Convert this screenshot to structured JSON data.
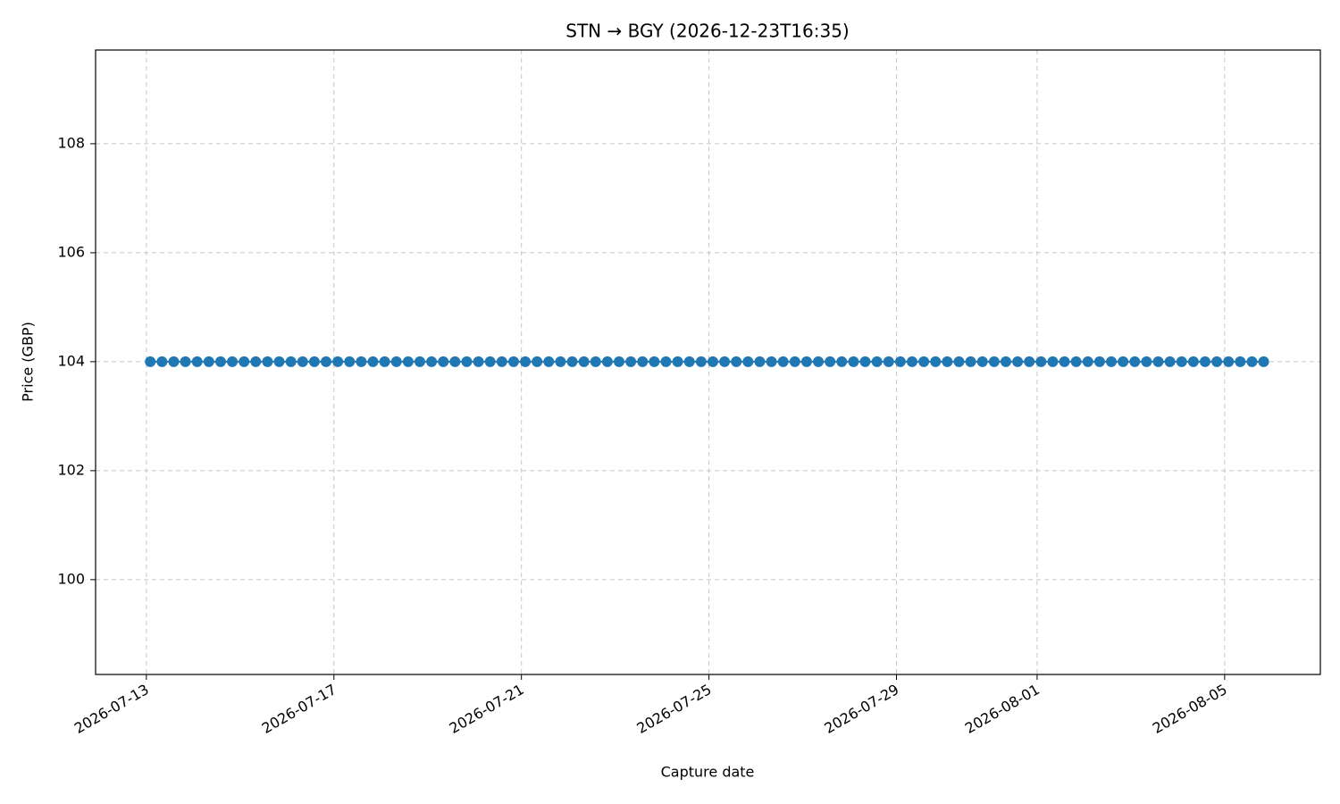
{
  "chart_data": {
    "type": "line",
    "title": "STN → BGY (2026-12-23T16:35)",
    "x_label": "Capture date",
    "y_label": "Price (GBP)",
    "x": [
      "2026-07-13T02:00",
      "2026-07-13T08:00",
      "2026-07-13T14:00",
      "2026-07-13T20:00",
      "2026-07-14T02:00",
      "2026-07-14T08:00",
      "2026-07-14T14:00",
      "2026-07-14T20:00",
      "2026-07-15T02:00",
      "2026-07-15T08:00",
      "2026-07-15T14:00",
      "2026-07-15T20:00",
      "2026-07-16T02:00",
      "2026-07-16T08:00",
      "2026-07-16T14:00",
      "2026-07-16T20:00",
      "2026-07-17T02:00",
      "2026-07-17T08:00",
      "2026-07-17T14:00",
      "2026-07-17T20:00",
      "2026-07-18T02:00",
      "2026-07-18T08:00",
      "2026-07-18T14:00",
      "2026-07-18T20:00",
      "2026-07-19T02:00",
      "2026-07-19T08:00",
      "2026-07-19T14:00",
      "2026-07-19T20:00",
      "2026-07-20T02:00",
      "2026-07-20T08:00",
      "2026-07-20T14:00",
      "2026-07-20T20:00",
      "2026-07-21T02:00",
      "2026-07-21T08:00",
      "2026-07-21T14:00",
      "2026-07-21T20:00",
      "2026-07-22T02:00",
      "2026-07-22T08:00",
      "2026-07-22T14:00",
      "2026-07-22T20:00",
      "2026-07-23T02:00",
      "2026-07-23T08:00",
      "2026-07-23T14:00",
      "2026-07-23T20:00",
      "2026-07-24T02:00",
      "2026-07-24T08:00",
      "2026-07-24T14:00",
      "2026-07-24T20:00",
      "2026-07-25T02:00",
      "2026-07-25T08:00",
      "2026-07-25T14:00",
      "2026-07-25T20:00",
      "2026-07-26T02:00",
      "2026-07-26T08:00",
      "2026-07-26T14:00",
      "2026-07-26T20:00",
      "2026-07-27T02:00",
      "2026-07-27T08:00",
      "2026-07-27T14:00",
      "2026-07-27T20:00",
      "2026-07-28T02:00",
      "2026-07-28T08:00",
      "2026-07-28T14:00",
      "2026-07-28T20:00",
      "2026-07-29T02:00",
      "2026-07-29T08:00",
      "2026-07-29T14:00",
      "2026-07-29T20:00",
      "2026-07-30T02:00",
      "2026-07-30T08:00",
      "2026-07-30T14:00",
      "2026-07-30T20:00",
      "2026-07-31T02:00",
      "2026-07-31T08:00",
      "2026-07-31T14:00",
      "2026-07-31T20:00",
      "2026-08-01T02:00",
      "2026-08-01T08:00",
      "2026-08-01T14:00",
      "2026-08-01T20:00",
      "2026-08-02T02:00",
      "2026-08-02T08:00",
      "2026-08-02T14:00",
      "2026-08-02T20:00",
      "2026-08-03T02:00",
      "2026-08-03T08:00",
      "2026-08-03T14:00",
      "2026-08-03T20:00",
      "2026-08-04T02:00",
      "2026-08-04T08:00",
      "2026-08-04T14:00",
      "2026-08-04T20:00",
      "2026-08-05T02:00",
      "2026-08-05T08:00",
      "2026-08-05T14:00",
      "2026-08-05T20:00"
    ],
    "values": [
      104,
      104,
      104,
      104,
      104,
      104,
      104,
      104,
      104,
      104,
      104,
      104,
      104,
      104,
      104,
      104,
      104,
      104,
      104,
      104,
      104,
      104,
      104,
      104,
      104,
      104,
      104,
      104,
      104,
      104,
      104,
      104,
      104,
      104,
      104,
      104,
      104,
      104,
      104,
      104,
      104,
      104,
      104,
      104,
      104,
      104,
      104,
      104,
      104,
      104,
      104,
      104,
      104,
      104,
      104,
      104,
      104,
      104,
      104,
      104,
      104,
      104,
      104,
      104,
      104,
      104,
      104,
      104,
      104,
      104,
      104,
      104,
      104,
      104,
      104,
      104,
      104,
      104,
      104,
      104,
      104,
      104,
      104,
      104,
      104,
      104,
      104,
      104,
      104,
      104,
      104,
      104,
      104,
      104,
      104,
      104
    ],
    "color": "#1f77b4",
    "xlim": [
      "2026-07-11T22:00",
      "2026-08-07T01:00"
    ],
    "xticks": [
      "2026-07-13",
      "2026-07-17",
      "2026-07-21",
      "2026-07-25",
      "2026-07-29",
      "2026-08-01",
      "2026-08-05"
    ],
    "ylim": [
      98.26,
      109.72
    ],
    "yticks": [
      100,
      102,
      104,
      106,
      108
    ],
    "grid": true
  }
}
